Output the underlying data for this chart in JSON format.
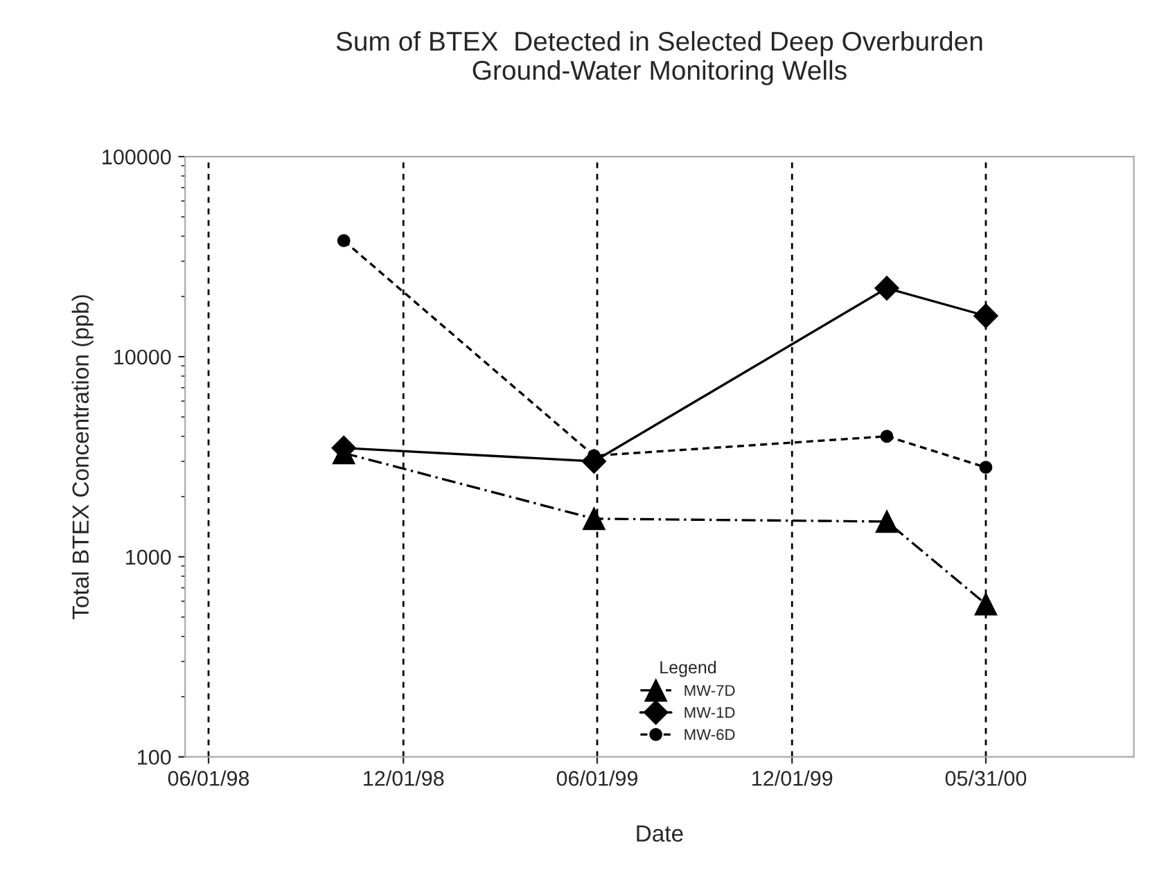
{
  "chart_data": {
    "type": "line",
    "title": "Sum of BTEX  Detected in Selected Deep Overburden\nGround-Water Monitoring Wells",
    "xlabel": "Date",
    "ylabel": "Total BTEX Concentration (ppb)",
    "legend_title": "Legend",
    "x": [
      "1998-10-06",
      "1999-05-29",
      "2000-02-28",
      "2000-05-31"
    ],
    "series": [
      {
        "name": "MW-7D",
        "color": "#000000",
        "marker": "triangle",
        "line_style": "dashdot",
        "values": [
          3300,
          1550,
          1500,
          580
        ]
      },
      {
        "name": "MW-1D",
        "color": "#000000",
        "marker": "diamond",
        "line_style": "solid",
        "values": [
          3500,
          3000,
          22000,
          16000
        ]
      },
      {
        "name": "MW-6D",
        "color": "#000000",
        "marker": "circle",
        "line_style": "dashed",
        "values": [
          38000,
          3200,
          4000,
          2800
        ]
      }
    ],
    "log": "y",
    "ylim": [
      100,
      100000
    ],
    "yticks": [
      100,
      1000,
      10000,
      100000
    ],
    "xlim": [
      "1998-05-10",
      "2000-10-17"
    ],
    "xticks": [
      {
        "value": "1998-06-01",
        "label": "06/01/98"
      },
      {
        "value": "1998-12-01",
        "label": "12/01/98"
      },
      {
        "value": "1999-06-01",
        "label": "06/01/99"
      },
      {
        "value": "1999-12-01",
        "label": "12/01/99"
      },
      {
        "value": "2000-05-31",
        "label": "05/31/00"
      }
    ],
    "grid": "x",
    "legend": "bottom"
  }
}
